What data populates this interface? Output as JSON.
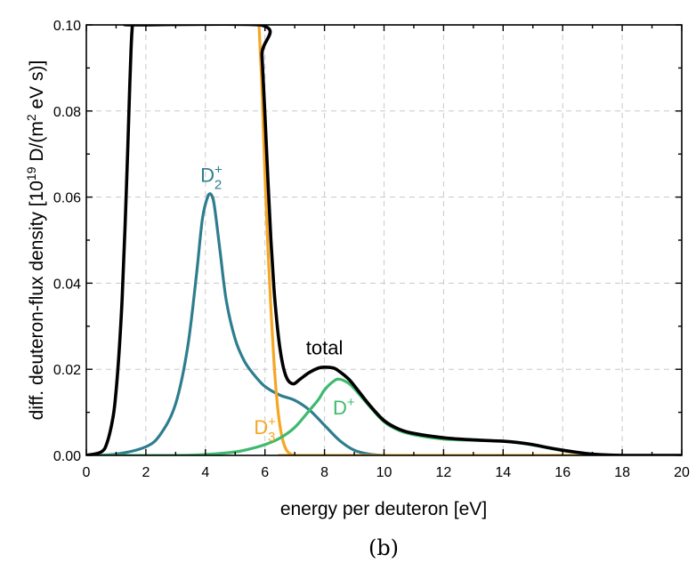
{
  "chart_data": {
    "type": "line",
    "xlabel": "energy per deuteron [eV]",
    "ylabel": "diff. deuteron-flux density [10",
    "ylabel_exp": "19",
    "ylabel_unit": " D/(m",
    "ylabel_unit_exp": "2",
    "ylabel_tail": " eV s)]",
    "caption": "(b)",
    "xlim": [
      0,
      20
    ],
    "ylim": [
      0,
      0.1
    ],
    "xticks": [
      "0",
      "2",
      "4",
      "6",
      "8",
      "10",
      "12",
      "14",
      "16",
      "18",
      "20"
    ],
    "yticks": [
      "0.00",
      "0.02",
      "0.04",
      "0.06",
      "0.08",
      "0.10"
    ],
    "grid": true,
    "series": [
      {
        "name": "D2+",
        "label_main": "D",
        "label_sub": "2",
        "label_sup": "+",
        "color": "#2e7d8f",
        "x": [
          0.0,
          1.0,
          2.0,
          2.5,
          3.0,
          3.4,
          3.7,
          3.9,
          4.1,
          4.2,
          4.3,
          4.5,
          4.7,
          5.0,
          5.3,
          5.6,
          6.0,
          6.5,
          7.0,
          7.5,
          8.0,
          8.5,
          9.0,
          9.5,
          10.0
        ],
        "y": [
          0.0,
          0.0003,
          0.002,
          0.005,
          0.012,
          0.025,
          0.042,
          0.055,
          0.0605,
          0.0605,
          0.058,
          0.047,
          0.036,
          0.027,
          0.022,
          0.019,
          0.016,
          0.014,
          0.0128,
          0.0105,
          0.007,
          0.0035,
          0.0012,
          0.0003,
          0.0
        ]
      },
      {
        "name": "D3+",
        "label_main": "D",
        "label_sub": "3",
        "label_sup": "+",
        "color": "#f5a623",
        "x": [
          5.8,
          5.9,
          6.0,
          6.1,
          6.2,
          6.3,
          6.4,
          6.5,
          6.6,
          6.7,
          6.8,
          6.9,
          7.0,
          7.2,
          7.5,
          20.0
        ],
        "y": [
          0.1,
          0.085,
          0.065,
          0.048,
          0.034,
          0.022,
          0.013,
          0.007,
          0.0035,
          0.0015,
          0.0006,
          0.0002,
          0.0,
          0.0,
          0.0,
          0.0
        ]
      },
      {
        "name": "D+",
        "label_main": "D",
        "label_sub": "",
        "label_sup": "+",
        "color": "#3dba6e",
        "x": [
          0.0,
          3.0,
          4.0,
          5.0,
          5.5,
          6.0,
          6.5,
          7.0,
          7.5,
          7.8,
          8.0,
          8.3,
          8.5,
          8.8,
          9.0,
          9.5,
          10.0,
          10.5,
          11.0,
          12.0,
          13.0,
          14.0,
          15.0,
          16.0,
          17.0,
          18.0
        ],
        "y": [
          0.0,
          0.0,
          0.0002,
          0.0008,
          0.0015,
          0.0025,
          0.004,
          0.0065,
          0.0105,
          0.013,
          0.0152,
          0.0172,
          0.0177,
          0.0168,
          0.0155,
          0.0115,
          0.0078,
          0.0058,
          0.0048,
          0.0038,
          0.0035,
          0.0033,
          0.0024,
          0.0011,
          0.0003,
          0.0
        ]
      },
      {
        "name": "total",
        "label_main": "total",
        "label_sub": "",
        "label_sup": "",
        "color": "#000000",
        "x": [
          0.0,
          0.5,
          0.7,
          0.9,
          1.0,
          1.1,
          1.2,
          1.3,
          1.4,
          1.45,
          1.5,
          1.55,
          1.6,
          5.85,
          5.9,
          6.0,
          6.1,
          6.2,
          6.3,
          6.4,
          6.5,
          6.6,
          6.7,
          6.8,
          6.9,
          7.0,
          7.2,
          7.5,
          7.8,
          8.0,
          8.3,
          8.5,
          8.8,
          9.0,
          9.5,
          10.0,
          10.5,
          11.0,
          12.0,
          13.0,
          14.0,
          14.5,
          15.0,
          15.5,
          16.0,
          16.5,
          17.0,
          17.5,
          18.0,
          18.5,
          20.0
        ],
        "y": [
          0.0,
          0.0008,
          0.003,
          0.009,
          0.015,
          0.024,
          0.036,
          0.053,
          0.073,
          0.084,
          0.094,
          0.1,
          0.1,
          0.1,
          0.093,
          0.079,
          0.064,
          0.05,
          0.039,
          0.031,
          0.025,
          0.021,
          0.0185,
          0.0172,
          0.0167,
          0.0167,
          0.0178,
          0.0193,
          0.0203,
          0.0205,
          0.0203,
          0.0195,
          0.0178,
          0.0162,
          0.0118,
          0.0081,
          0.0061,
          0.0051,
          0.0041,
          0.0036,
          0.0033,
          0.003,
          0.0025,
          0.0018,
          0.0012,
          0.0007,
          0.0003,
          0.0001,
          0.0,
          0.0,
          0.0
        ]
      }
    ],
    "annotations": [
      {
        "series": "D2+",
        "x": 4.2,
        "y": 0.0635
      },
      {
        "series": "D3+",
        "x": 6.0,
        "y": 0.005
      },
      {
        "series": "D+",
        "x": 8.65,
        "y": 0.0095
      },
      {
        "series": "total",
        "x": 8.0,
        "y": 0.0235
      }
    ]
  }
}
